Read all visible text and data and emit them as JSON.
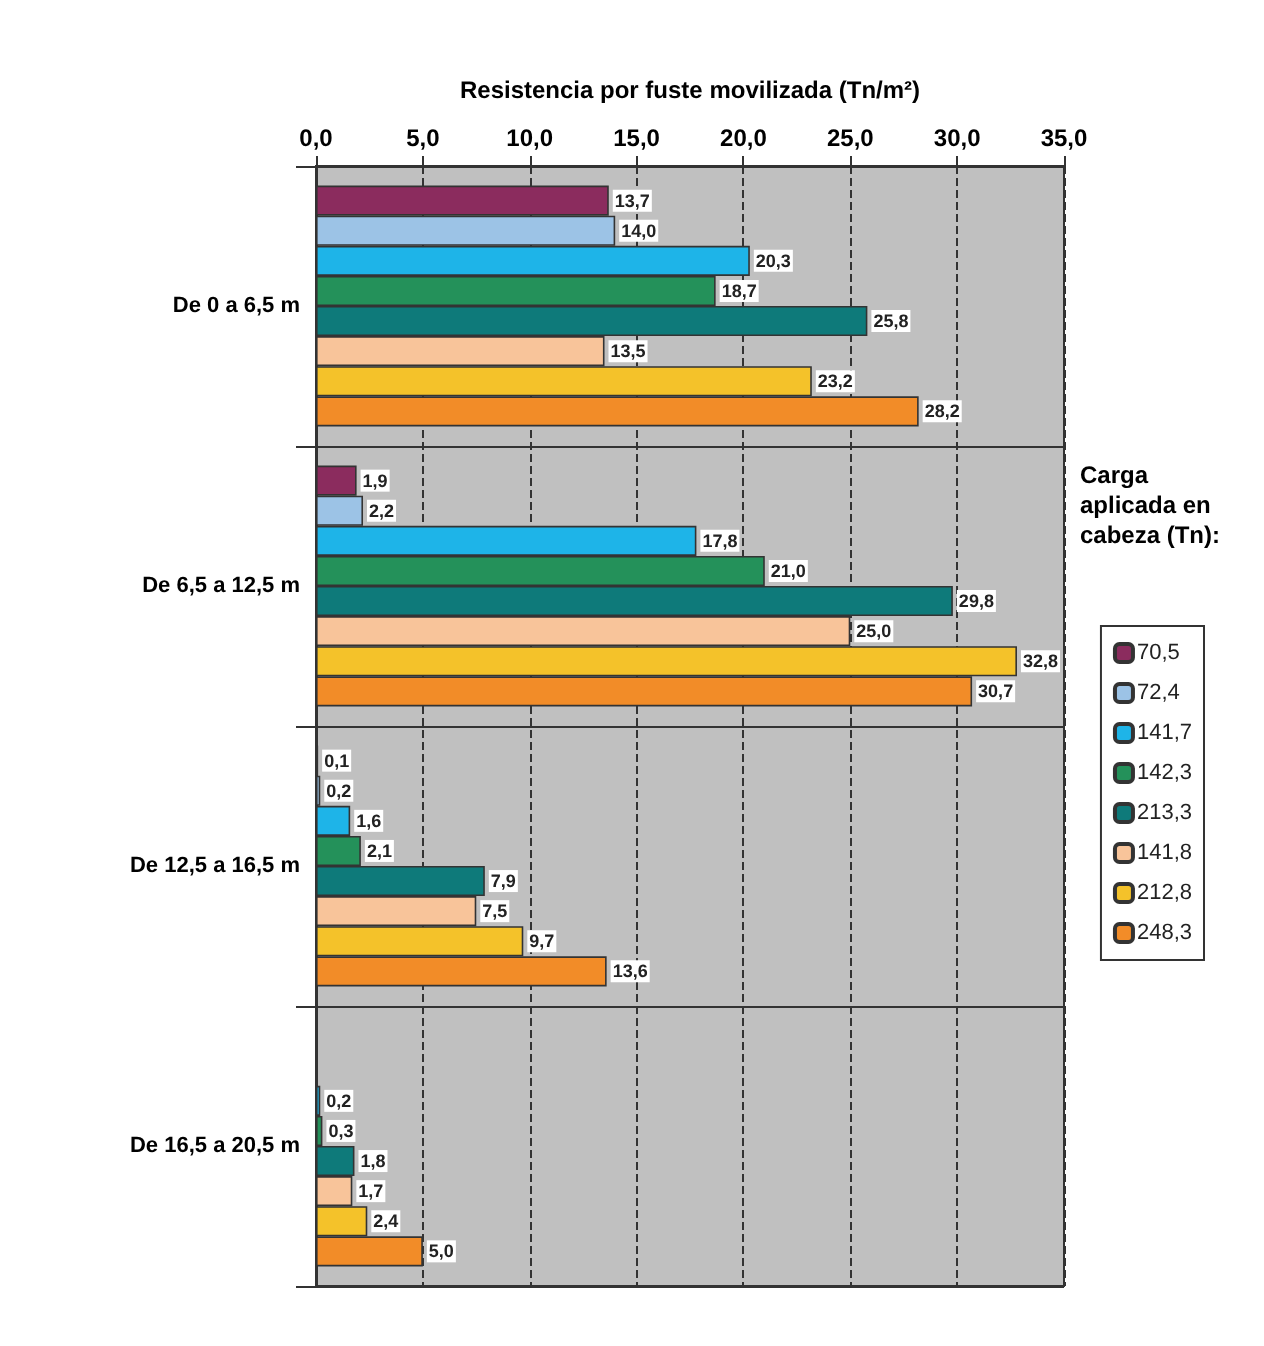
{
  "chart_data": {
    "type": "bar",
    "orientation": "horizontal",
    "xlabel": "Resistencia por fuste movilizada (Tn/m²)",
    "legend_title": "Carga aplicada en cabeza (Tn):",
    "categories": [
      "De 0 a 6,5 m",
      "De 6,5 a 12,5 m",
      "De 12,5 a 16,5 m",
      "De 16,5 a 20,5 m"
    ],
    "series": [
      {
        "name": "70,5",
        "color": "#8b2c5e",
        "values": [
          13.7,
          1.9,
          0.1,
          null
        ],
        "value_labels": [
          "13,7",
          "1,9",
          "0,1",
          null
        ]
      },
      {
        "name": "72,4",
        "color": "#9cc3e6",
        "values": [
          14.0,
          2.2,
          0.2,
          null
        ],
        "value_labels": [
          "14,0",
          "2,2",
          "0,2",
          null
        ]
      },
      {
        "name": "141,7",
        "color": "#1eb4e8",
        "values": [
          20.3,
          17.8,
          1.6,
          0.2
        ],
        "value_labels": [
          "20,3",
          "17,8",
          "1,6",
          "0,2"
        ]
      },
      {
        "name": "142,3",
        "color": "#24915a",
        "values": [
          18.7,
          21.0,
          2.1,
          0.3
        ],
        "value_labels": [
          "18,7",
          "21,0",
          "2,1",
          "0,3"
        ]
      },
      {
        "name": "213,3",
        "color": "#0e7a7a",
        "values": [
          25.8,
          29.8,
          7.9,
          1.8
        ],
        "value_labels": [
          "25,8",
          "29,8",
          "7,9",
          "1,8"
        ]
      },
      {
        "name": "141,8",
        "color": "#f8c49a",
        "values": [
          13.5,
          25.0,
          7.5,
          1.7
        ],
        "value_labels": [
          "13,5",
          "25,0",
          "7,5",
          "1,7"
        ]
      },
      {
        "name": "212,8",
        "color": "#f4c22a",
        "values": [
          23.2,
          32.8,
          9.7,
          2.4
        ],
        "value_labels": [
          "23,2",
          "32,8",
          "9,7",
          "2,4"
        ]
      },
      {
        "name": "248,3",
        "color": "#f28c28",
        "values": [
          28.2,
          30.7,
          13.6,
          5.0
        ],
        "value_labels": [
          "28,2",
          "30,7",
          "13,6",
          "5,0"
        ]
      }
    ],
    "xlim": [
      0,
      35
    ],
    "xticks": [
      {
        "value": 0,
        "label": "0,0"
      },
      {
        "value": 5,
        "label": "5,0"
      },
      {
        "value": 10,
        "label": "10,0"
      },
      {
        "value": 15,
        "label": "15,0"
      },
      {
        "value": 20,
        "label": "20,0"
      },
      {
        "value": 25,
        "label": "25,0"
      },
      {
        "value": 30,
        "label": "30,0"
      },
      {
        "value": 35,
        "label": "35,0"
      }
    ],
    "grid": "x",
    "legend": "right"
  }
}
